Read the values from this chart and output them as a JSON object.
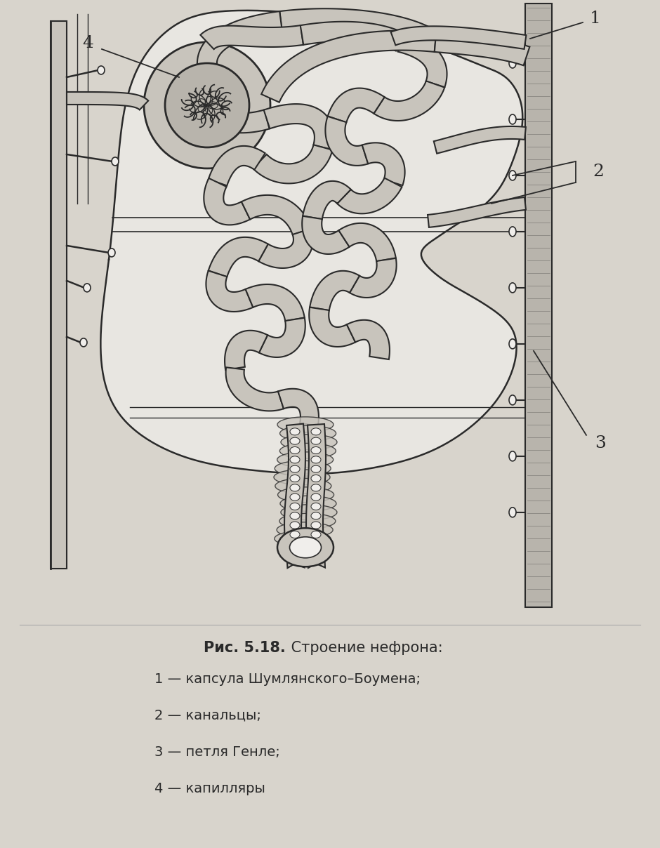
{
  "bg_color": "#d8d4cc",
  "fig_bg": "#d0ccc4",
  "draw_color": "#2a2a2a",
  "fill_gray": "#b8b4ac",
  "fill_light": "#c8c4bc",
  "fill_white": "#f0eeeb",
  "title_bold": "Рис. 5.18.",
  "title_normal": " Строение нефрона:",
  "legend_items": [
    "1 — капсула Шумлянского–Боумена;",
    "2 — канальцы;",
    "3 — петля Генле;",
    "4 — капилляры"
  ]
}
